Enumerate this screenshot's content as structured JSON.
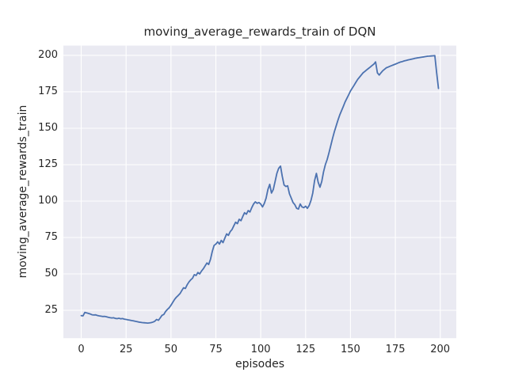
{
  "window": {
    "background": "#ffffff"
  },
  "chart_data": {
    "type": "line",
    "title": "moving_average_rewards_train of DQN",
    "xlabel": "episodes",
    "ylabel": "moving_average_rewards_train",
    "x_ticks": [
      0,
      25,
      50,
      75,
      100,
      125,
      150,
      175,
      200
    ],
    "y_ticks": [
      25,
      50,
      75,
      100,
      125,
      150,
      175,
      200
    ],
    "xlim": [
      -9.95,
      208.95
    ],
    "ylim": [
      5.9,
      206.7
    ],
    "grid": true,
    "legend": "none",
    "style": {
      "plot_bg": "#EAEAF2",
      "grid_color": "#FFFFFF",
      "line_color": "#4C72B0",
      "line_width": 1.8,
      "text_color": "#262626"
    },
    "series": [
      {
        "name": "moving_average_rewards_train",
        "x_start": 0,
        "x_step": 1,
        "values": [
          21.4,
          21.2,
          23.6,
          23.3,
          22.9,
          22.5,
          22.0,
          21.8,
          21.9,
          21.5,
          21.2,
          21.0,
          20.8,
          20.9,
          20.6,
          20.3,
          20.0,
          19.8,
          19.9,
          19.5,
          19.3,
          19.6,
          19.2,
          19.4,
          19.0,
          18.8,
          18.5,
          18.3,
          18.0,
          17.8,
          17.5,
          17.3,
          17.0,
          16.8,
          16.6,
          16.5,
          16.4,
          16.3,
          16.4,
          16.6,
          17.0,
          17.5,
          18.8,
          18.2,
          19.8,
          21.6,
          22.2,
          24.2,
          25.6,
          26.8,
          28.5,
          30.5,
          32.5,
          34.0,
          35.2,
          36.5,
          38.5,
          40.5,
          40.0,
          42.5,
          44.5,
          46.0,
          47.0,
          49.5,
          49.0,
          51.0,
          50.0,
          52.0,
          53.5,
          55.5,
          57.5,
          56.5,
          60.0,
          65.5,
          69.5,
          70.5,
          72.0,
          70.5,
          73.0,
          71.5,
          74.5,
          77.5,
          76.5,
          79.0,
          80.5,
          83.0,
          85.5,
          84.5,
          87.5,
          86.5,
          89.5,
          92.0,
          91.0,
          93.5,
          92.5,
          95.5,
          98.0,
          99.5,
          98.5,
          99.0,
          98.0,
          96.0,
          98.5,
          102.0,
          108.0,
          111.5,
          105.5,
          108.0,
          113.5,
          119.0,
          122.5,
          124.0,
          117.0,
          111.0,
          110.0,
          110.5,
          105.0,
          102.0,
          99.0,
          97.5,
          95.0,
          94.5,
          98.0,
          96.0,
          95.5,
          96.5,
          95.0,
          97.0,
          100.5,
          105.5,
          114.0,
          119.0,
          113.0,
          109.5,
          113.5,
          120.0,
          125.0,
          128.5,
          133.0,
          138.0,
          143.0,
          147.5,
          151.5,
          155.5,
          159.0,
          162.0,
          165.0,
          168.0,
          170.5,
          173.0,
          175.5,
          177.5,
          179.5,
          181.5,
          183.5,
          185.0,
          186.5,
          188.0,
          189.0,
          190.0,
          191.0,
          192.0,
          193.0,
          194.0,
          195.5,
          188.0,
          186.5,
          188.0,
          189.5,
          190.5,
          191.5,
          192.0,
          192.5,
          193.0,
          193.5,
          194.0,
          194.5,
          195.0,
          195.5,
          195.8,
          196.2,
          196.5,
          196.8,
          197.1,
          197.4,
          197.7,
          198.0,
          198.2,
          198.4,
          198.6,
          198.8,
          199.0,
          199.2,
          199.4,
          199.5,
          199.6,
          199.7,
          199.8,
          188.0,
          177.3
        ]
      }
    ]
  }
}
